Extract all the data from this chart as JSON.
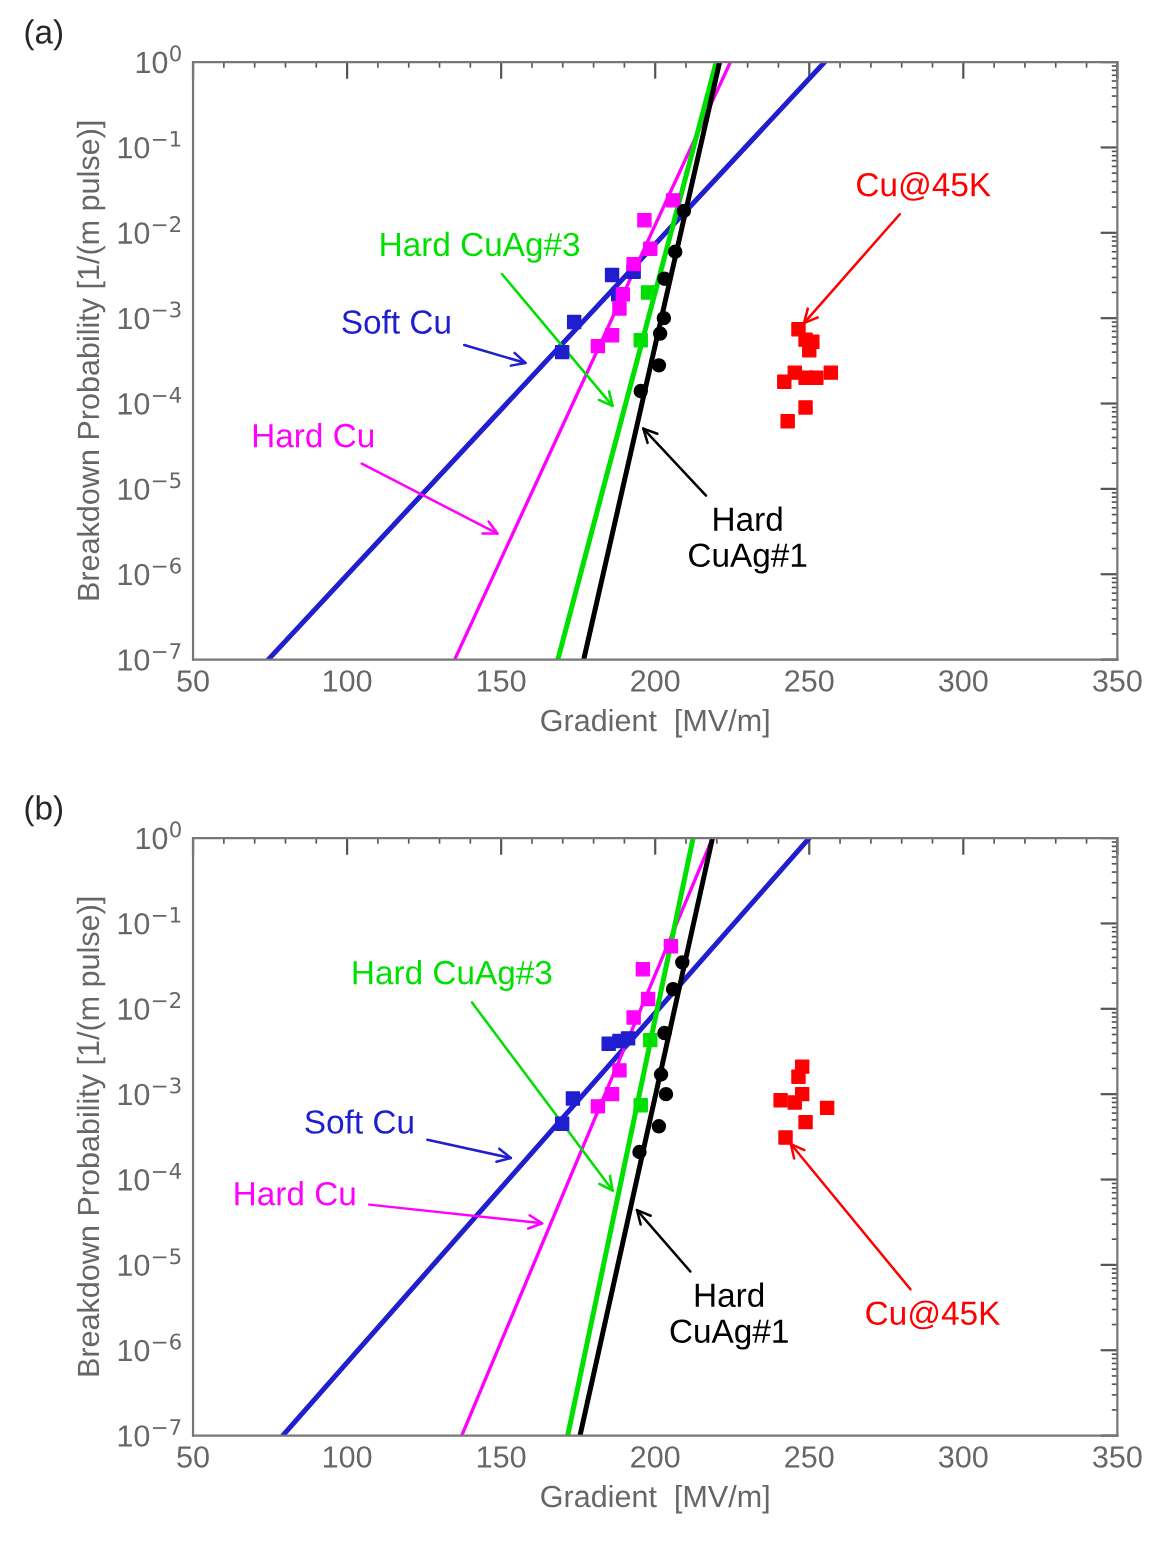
{
  "chart_data": [
    {
      "type": "scatter",
      "title": "(a)",
      "xlabel": "Gradient  [MV/m]",
      "ylabel": "Breakdown Probability [1/(m pulse)]",
      "log": "y",
      "grid": false,
      "legend": false,
      "xlim": [
        50,
        350
      ],
      "xticks": [
        50,
        100,
        150,
        200,
        250,
        300,
        350
      ],
      "ylim": [
        1e-07,
        1
      ],
      "yticks": [
        {
          "value": 1e-07,
          "label": "10$^{−7}$"
        },
        {
          "value": 1e-06,
          "label": "10$^{−6}$"
        },
        {
          "value": 1e-05,
          "label": "10$^{−5}$"
        },
        {
          "value": 0.0001,
          "label": "10$^{−4}$"
        },
        {
          "value": 0.001,
          "label": "10$^{−3}$"
        },
        {
          "value": 0.01,
          "label": "10$^{−2}$"
        },
        {
          "value": 0.1,
          "label": "10$^{−1}$"
        },
        {
          "value": 1,
          "label": "10$^{0}$"
        }
      ],
      "series": [
        {
          "marker": "square",
          "color": "#1f1fd0",
          "x": [
            169.8,
            173.7,
            186,
            188,
            193
          ],
          "values": [
            0.0004,
            0.0009,
            0.0032,
            0.0019,
            0.0035
          ]
        },
        {
          "marker": "square",
          "color": "#ff00ff",
          "x": [
            181.4,
            186,
            188.4,
            189.5,
            193,
            196.5,
            198.4,
            205.8
          ],
          "values": [
            0.00047,
            0.00063,
            0.0013,
            0.0019,
            0.0043,
            0.014,
            0.0065,
            0.024
          ]
        },
        {
          "marker": "square",
          "color": "#00e000",
          "x": [
            195.3,
            197.7
          ],
          "values": [
            0.00055,
            0.002
          ]
        },
        {
          "marker": "circle",
          "color": "#000000",
          "x": [
            195.3,
            201.2,
            201.6,
            202.8,
            203,
            206.5,
            209.3
          ],
          "values": [
            0.00014,
            0.00028,
            0.00066,
            0.001,
            0.0029,
            0.006,
            0.018
          ]
        },
        {
          "marker": "square",
          "color": "#ff0000",
          "x": [
            243,
            246.5,
            248.8,
            245.3,
            241.9,
            248.8,
            250,
            252.3,
            257,
            248.8,
            251
          ],
          "values": [
            6.2e-05,
            0.00074,
            0.00056,
            0.00023,
            0.00018,
            0.0002,
            0.00042,
            0.0002,
            0.00023,
            9e-05,
            0.00053
          ]
        },
        {
          "type": "line",
          "color": "#1f1fd0",
          "x": [
            74.4,
            255
          ],
          "values": [
            1e-07,
            1
          ]
        },
        {
          "type": "line",
          "color": "#ff00ff",
          "x": [
            134.9,
            224.4
          ],
          "values": [
            1e-07,
            1
          ]
        },
        {
          "type": "line",
          "color": "#00e000",
          "x": [
            168.4,
            219.8
          ],
          "values": [
            1e-07,
            1
          ]
        },
        {
          "type": "line",
          "color": "#000000",
          "x": [
            176.8,
            220.9
          ],
          "values": [
            1e-07,
            1
          ]
        }
      ],
      "annotations": [
        {
          "text": "Soft Cu",
          "x": 160.5,
          "y": 0.00028
        },
        {
          "text": "Hard Cu",
          "x": 151.2,
          "y": 2.7e-06
        },
        {
          "text": "Hard CuAg#3",
          "x": 187.9,
          "y": 7.9e-05
        },
        {
          "text": "Hard\nCuAg#1",
          "x": 194.3,
          "y": 6e-05
        },
        {
          "text": "Cu@45K",
          "x": 246.5,
          "y": 0.00074
        }
      ]
    },
    {
      "type": "scatter",
      "title": "(b)",
      "xlabel": "Gradient  [MV/m]",
      "ylabel": "Breakdown Probability [1/(m pulse)]",
      "log": "y",
      "grid": false,
      "legend": false,
      "xlim": [
        50,
        350
      ],
      "xticks": [
        50,
        100,
        150,
        200,
        250,
        300,
        350
      ],
      "ylim": [
        1e-07,
        1
      ],
      "yticks": [
        {
          "value": 1e-07,
          "label": "10$^{−7}$"
        },
        {
          "value": 1e-06,
          "label": "10$^{−6}$"
        },
        {
          "value": 1e-05,
          "label": "10$^{−5}$"
        },
        {
          "value": 0.0001,
          "label": "10$^{−4}$"
        },
        {
          "value": 0.001,
          "label": "10$^{−3}$"
        },
        {
          "value": 0.01,
          "label": "10$^{−2}$"
        },
        {
          "value": 0.1,
          "label": "10$^{−1}$"
        },
        {
          "value": 1,
          "label": "10$^{0}$"
        }
      ],
      "series": [
        {
          "marker": "square",
          "color": "#1f1fd0",
          "x": [
            169.8,
            173.3,
            184.9,
            188.4,
            191.2
          ],
          "values": [
            0.00045,
            0.00089,
            0.0039,
            0.0042,
            0.0045
          ]
        },
        {
          "marker": "square",
          "color": "#ff00ff",
          "x": [
            181.4,
            186,
            188.4,
            193,
            196,
            197.7,
            205.1
          ],
          "values": [
            0.00072,
            0.001,
            0.0019,
            0.0079,
            0.029,
            0.013,
            0.054
          ]
        },
        {
          "marker": "square",
          "color": "#00e000",
          "x": [
            195.3,
            198.4
          ],
          "values": [
            0.00074,
            0.0043
          ]
        },
        {
          "marker": "circle",
          "color": "#000000",
          "x": [
            194.9,
            201.2,
            201.9,
            203.5,
            203,
            205.8,
            208.8
          ],
          "values": [
            0.00021,
            0.00042,
            0.0017,
            0.001,
            0.0052,
            0.017,
            0.035
          ]
        },
        {
          "marker": "square",
          "color": "#ff0000",
          "x": [
            242.3,
            246.5,
            247.7,
            240.7,
            245.3,
            248.8,
            255.8,
            247.7
          ],
          "values": [
            0.00031,
            0.0016,
            0.0021,
            0.00085,
            0.0008,
            0.00047,
            0.00069,
            0.001
          ]
        },
        {
          "type": "line",
          "color": "#1f1fd0",
          "x": [
            79.1,
            250
          ],
          "values": [
            1e-07,
            1
          ]
        },
        {
          "type": "line",
          "color": "#ff00ff",
          "x": [
            137.2,
            218.6
          ],
          "values": [
            1e-07,
            1
          ]
        },
        {
          "type": "line",
          "color": "#00e000",
          "x": [
            171.6,
            212.3
          ],
          "values": [
            1e-07,
            1
          ]
        },
        {
          "type": "line",
          "color": "#000000",
          "x": [
            175.6,
            218.6
          ],
          "values": [
            1e-07,
            1
          ]
        }
      ],
      "annotations": [
        {
          "text": "Soft Cu",
          "x": 155.8,
          "y": 0.00017
        },
        {
          "text": "Hard Cu",
          "x": 166.0,
          "y": 3e-05
        },
        {
          "text": "Hard CuAg#3",
          "x": 187.8,
          "y": 6.2e-05
        },
        {
          "text": "Hard\nCuAg#1",
          "x": 192.3,
          "y": 5.2e-05
        },
        {
          "text": "Cu@45K",
          "x": 242.3,
          "y": 0.00031
        }
      ]
    }
  ]
}
